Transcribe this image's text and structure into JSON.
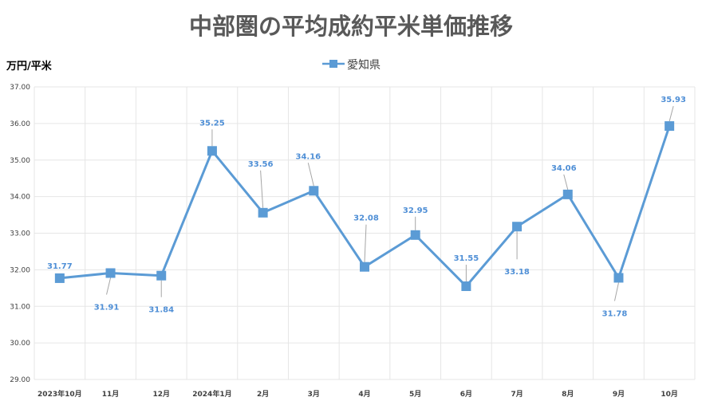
{
  "chart_data": {
    "type": "line",
    "title": "中部圏の平均成約平米単価推移",
    "ylabel": "万円/平米",
    "xlabel": "",
    "categories": [
      "2023年10月",
      "11月",
      "12月",
      "2024年1月",
      "2月",
      "3月",
      "4月",
      "5月",
      "6月",
      "7月",
      "8月",
      "9月",
      "10月"
    ],
    "series": [
      {
        "name": "愛知県",
        "values": [
          31.77,
          31.91,
          31.84,
          35.25,
          33.56,
          34.16,
          32.08,
          32.95,
          31.55,
          33.18,
          34.06,
          31.78,
          35.93
        ]
      }
    ],
    "value_labels": [
      "31.77",
      "31.91",
      "31.84",
      "35.25",
      "33.56",
      "34.16",
      "32.08",
      "32.95",
      "31.55",
      "33.18",
      "34.06",
      "31.78",
      "35.93"
    ],
    "ylim": [
      29,
      37
    ],
    "yticks": [
      "29.00",
      "30.00",
      "31.00",
      "32.00",
      "33.00",
      "34.00",
      "35.00",
      "36.00",
      "37.00"
    ],
    "grid": true,
    "legend_position": "top-center",
    "colors": {
      "series": "#5b9bd5",
      "grid": "#e6e6e6",
      "label": "#4f8fd6"
    }
  }
}
